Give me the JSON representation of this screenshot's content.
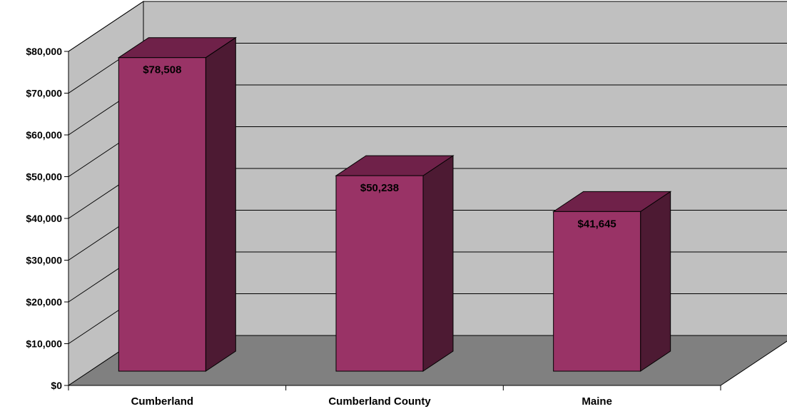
{
  "chart_data": {
    "type": "bar",
    "title": "",
    "xlabel": "",
    "ylabel": "",
    "categories": [
      "Cumberland",
      "Cumberland County",
      "Maine"
    ],
    "values": [
      78508,
      50238,
      41645
    ],
    "data_labels": [
      "$78,508",
      "$50,238",
      "$41,645"
    ],
    "ylim": [
      0,
      80000
    ],
    "yticks": [
      0,
      10000,
      20000,
      30000,
      40000,
      50000,
      60000,
      70000,
      80000
    ],
    "ytick_labels": [
      "$0",
      "$10,000",
      "$20,000",
      "$30,000",
      "$40,000",
      "$50,000",
      "$60,000",
      "$70,000",
      "$80,000"
    ],
    "grid": true,
    "legend": "none",
    "style": "3d-column",
    "colors": {
      "bar_front": "#993366",
      "bar_top": "#6F2149",
      "bar_side": "#4D1A33",
      "back_wall": "#C0C0C0",
      "side_wall": "#C0C0C0",
      "floor": "#808080",
      "gridline": "#000000"
    }
  }
}
